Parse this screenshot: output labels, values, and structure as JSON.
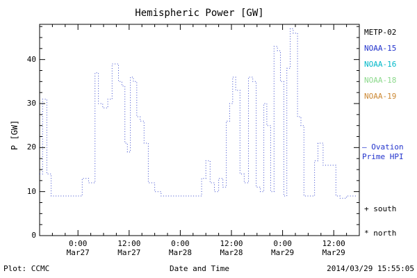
{
  "title": "Hemispheric Power [GW]",
  "footer": {
    "left": "Plot: CCMC",
    "right": "2014/03/29 15:55:05"
  },
  "legend": {
    "satellites": [
      {
        "label": "METP-02",
        "color": "#000000"
      },
      {
        "label": "NOAA-15",
        "color": "#2233cc"
      },
      {
        "label": "NOAA-16",
        "color": "#00b8c8"
      },
      {
        "label": "NOAA-18",
        "color": "#8cd98c"
      },
      {
        "label": "NOAA-19",
        "color": "#cc8833"
      }
    ],
    "ovation": {
      "line1": "— Ovation",
      "line2": "Prime HPI",
      "color": "#2233cc"
    },
    "marker_south": "+ south",
    "marker_north": "* north"
  },
  "chart_data": {
    "type": "line",
    "style": "dotted-step",
    "line_color": "#3344cc",
    "title": "Hemispheric Power [GW]",
    "xlabel": "Date and Time",
    "ylabel": "P [GW]",
    "ylim": [
      0,
      48
    ],
    "yticks": [
      0,
      10,
      20,
      30,
      40
    ],
    "xlim_hours": [
      0,
      75
    ],
    "xticks": [
      {
        "hour": 9,
        "label": "0:00",
        "sub": "Mar27"
      },
      {
        "hour": 21,
        "label": "12:00",
        "sub": "Mar27"
      },
      {
        "hour": 33,
        "label": "0:00",
        "sub": "Mar28"
      },
      {
        "hour": 45,
        "label": "12:00",
        "sub": "Mar28"
      },
      {
        "hour": 57,
        "label": "0:00",
        "sub": "Mar29"
      },
      {
        "hour": 69,
        "label": "12:00",
        "sub": "Mar29"
      }
    ],
    "x": [
      0,
      0.7,
      1.7,
      2.7,
      10,
      11.5,
      13,
      13.8,
      14.8,
      16,
      17,
      18.5,
      19.3,
      20,
      20.6,
      21.3,
      22,
      22.8,
      23.6,
      24.5,
      25.5,
      27,
      28.5,
      38,
      39,
      40,
      41,
      42,
      43,
      43.8,
      44.6,
      45.3,
      46,
      47,
      48,
      49,
      50,
      50.8,
      51.8,
      52.6,
      53.3,
      54.2,
      55,
      55.8,
      56.5,
      57.3,
      58,
      58.8,
      59.5,
      60.5,
      61.3,
      62,
      63.5,
      64.5,
      65.3,
      66.5,
      68,
      69.5,
      70.5,
      72,
      74.5
    ],
    "y": [
      14,
      31,
      14,
      9,
      13,
      12,
      37,
      30,
      29,
      31,
      39,
      35,
      34,
      21,
      19,
      36,
      35,
      27,
      26,
      21,
      12,
      10,
      9,
      13,
      17,
      12,
      10,
      13,
      11,
      26,
      30,
      36,
      33,
      14,
      12,
      36,
      35,
      11,
      10,
      30,
      25,
      10,
      43,
      42,
      35,
      9,
      38,
      47,
      46,
      27,
      25,
      9,
      9,
      17,
      21,
      16,
      16,
      9,
      8.5,
      9,
      9
    ]
  }
}
